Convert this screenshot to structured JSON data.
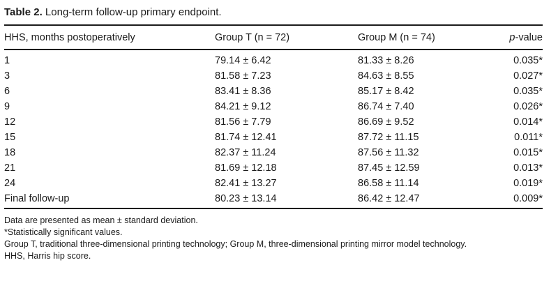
{
  "table": {
    "caption": {
      "label": "Table 2.",
      "text": "Long-term follow-up primary endpoint."
    },
    "header": {
      "col1": "HHS, months postoperatively",
      "col2": "Group T (n = 72)",
      "col3": "Group M (n = 74)",
      "col4_italic": "p",
      "col4_rest": "-value"
    },
    "rows": [
      {
        "months": "1",
        "group_t": "79.14 ± 6.42",
        "group_m": "81.33 ± 8.26",
        "p": "0.035*"
      },
      {
        "months": "3",
        "group_t": "81.58 ± 7.23",
        "group_m": "84.63 ± 8.55",
        "p": "0.027*"
      },
      {
        "months": "6",
        "group_t": "83.41 ± 8.36",
        "group_m": "85.17 ± 8.42",
        "p": "0.035*"
      },
      {
        "months": "9",
        "group_t": "84.21 ± 9.12",
        "group_m": "86.74 ± 7.40",
        "p": "0.026*"
      },
      {
        "months": "12",
        "group_t": "81.56 ± 7.79",
        "group_m": "86.69 ± 9.52",
        "p": "0.014*"
      },
      {
        "months": "15",
        "group_t": "81.74 ± 12.41",
        "group_m": "87.72 ± 11.15",
        "p": "0.011*"
      },
      {
        "months": "18",
        "group_t": "82.37 ± 11.24",
        "group_m": "87.56 ± 11.32",
        "p": "0.015*"
      },
      {
        "months": "21",
        "group_t": "81.69 ± 12.18",
        "group_m": "87.45 ± 12.59",
        "p": "0.013*"
      },
      {
        "months": "24",
        "group_t": "82.41 ± 13.27",
        "group_m": "86.58 ± 11.14",
        "p": "0.019*"
      },
      {
        "months": "Final follow-up",
        "group_t": "80.23 ± 13.14",
        "group_m": "86.42 ± 12.47",
        "p": "0.009*"
      }
    ],
    "footnotes": [
      "Data are presented as mean ± standard deviation.",
      "*Statistically significant values.",
      "Group T, traditional three-dimensional printing technology; Group M, three-dimensional printing mirror model technology.",
      "HHS, Harris hip score."
    ]
  },
  "chart_data": {
    "type": "table",
    "title": "Table 2. Long-term follow-up primary endpoint.",
    "columns": [
      "HHS, months postoperatively",
      "Group T (n = 72)",
      "Group M (n = 74)",
      "p-value"
    ],
    "rows": [
      [
        "1",
        "79.14 ± 6.42",
        "81.33 ± 8.26",
        "0.035*"
      ],
      [
        "3",
        "81.58 ± 7.23",
        "84.63 ± 8.55",
        "0.027*"
      ],
      [
        "6",
        "83.41 ± 8.36",
        "85.17 ± 8.42",
        "0.035*"
      ],
      [
        "9",
        "84.21 ± 9.12",
        "86.74 ± 7.40",
        "0.026*"
      ],
      [
        "12",
        "81.56 ± 7.79",
        "86.69 ± 9.52",
        "0.014*"
      ],
      [
        "15",
        "81.74 ± 12.41",
        "87.72 ± 11.15",
        "0.011*"
      ],
      [
        "18",
        "82.37 ± 11.24",
        "87.56 ± 11.32",
        "0.015*"
      ],
      [
        "21",
        "81.69 ± 12.18",
        "87.45 ± 12.59",
        "0.013*"
      ],
      [
        "24",
        "82.41 ± 13.27",
        "86.58 ± 11.14",
        "0.019*"
      ],
      [
        "Final follow-up",
        "80.23 ± 13.14",
        "86.42 ± 12.47",
        "0.009*"
      ]
    ]
  }
}
